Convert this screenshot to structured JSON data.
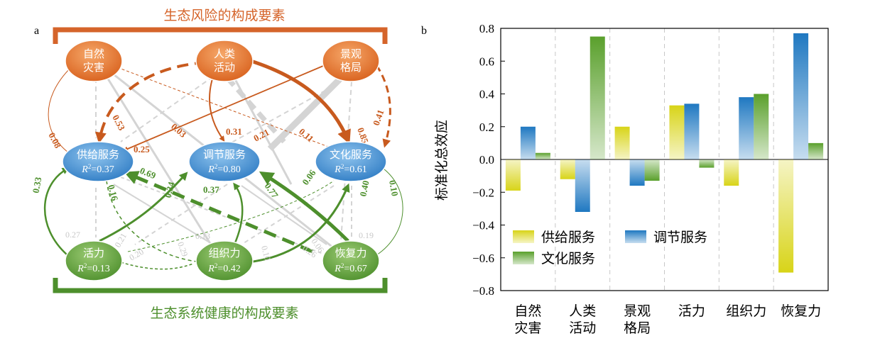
{
  "panel_a": {
    "label": "a",
    "top_title": "生态风险的构成要素",
    "bottom_title": "生态系统健康的构成要素",
    "risk_nodes": [
      {
        "id": "natural",
        "line1": "自然",
        "line2": "灾害"
      },
      {
        "id": "human",
        "line1": "人类",
        "line2": "活动"
      },
      {
        "id": "landscape",
        "line1": "景观",
        "line2": "格局"
      }
    ],
    "service_nodes": [
      {
        "id": "supply",
        "name": "供给服务",
        "r2": "0.37"
      },
      {
        "id": "regulate",
        "name": "调节服务",
        "r2": "0.80"
      },
      {
        "id": "culture",
        "name": "文化服务",
        "r2": "0.61"
      }
    ],
    "health_nodes": [
      {
        "id": "vigor",
        "name": "活力",
        "r2": "0.13"
      },
      {
        "id": "organization",
        "name": "组织力",
        "r2": "0.42"
      },
      {
        "id": "resilience",
        "name": "恢复力",
        "r2": "0.67"
      }
    ],
    "r2_prefix": "R",
    "r2_suffix": "=",
    "path_labels_orange": [
      "0.08",
      "0.53",
      "0.25",
      "0.03",
      "0.31",
      "0.21",
      "0.11",
      "0.85",
      "0.41"
    ],
    "path_labels_green": [
      "0.33",
      "0.16",
      "0.69",
      "0.34",
      "0.37",
      "0.77",
      "0.06",
      "0.40",
      "0.10"
    ],
    "path_labels_gray": [
      "0.27",
      "0.13",
      "0.06",
      "0.19",
      "0.21",
      "0.29",
      "0.20",
      "0.10",
      "0.26"
    ]
  },
  "chart_data": {
    "type": "bar",
    "panel_label": "b",
    "ylabel": "标准化总效应",
    "ylim": [
      -0.8,
      0.8
    ],
    "yticks": [
      0.8,
      0.6,
      0.4,
      0.2,
      0.0,
      -0.2,
      -0.4,
      -0.6,
      -0.8
    ],
    "ytick_labels": [
      "0.8",
      "0.6",
      "0.4",
      "0.2",
      "0.0",
      "−0.2",
      "−0.4",
      "−0.6",
      "−0.8"
    ],
    "categories": [
      [
        "自然",
        "灾害"
      ],
      [
        "人类",
        "活动"
      ],
      [
        "景观",
        "格局"
      ],
      [
        "活力"
      ],
      [
        "组织力"
      ],
      [
        "恢复力"
      ]
    ],
    "series": [
      {
        "name": "供给服务",
        "color": "#d8d418",
        "values": [
          -0.19,
          -0.12,
          0.2,
          0.33,
          -0.16,
          -0.69
        ]
      },
      {
        "name": "调节服务",
        "color": "#1f78c1",
        "values": [
          0.2,
          -0.32,
          -0.16,
          0.34,
          0.38,
          0.77
        ]
      },
      {
        "name": "文化服务",
        "color": "#5aa02c",
        "values": [
          0.04,
          0.75,
          -0.13,
          -0.05,
          0.4,
          0.1
        ]
      }
    ],
    "legend_position": "lower-left",
    "grid": "vertical dashed separators"
  }
}
